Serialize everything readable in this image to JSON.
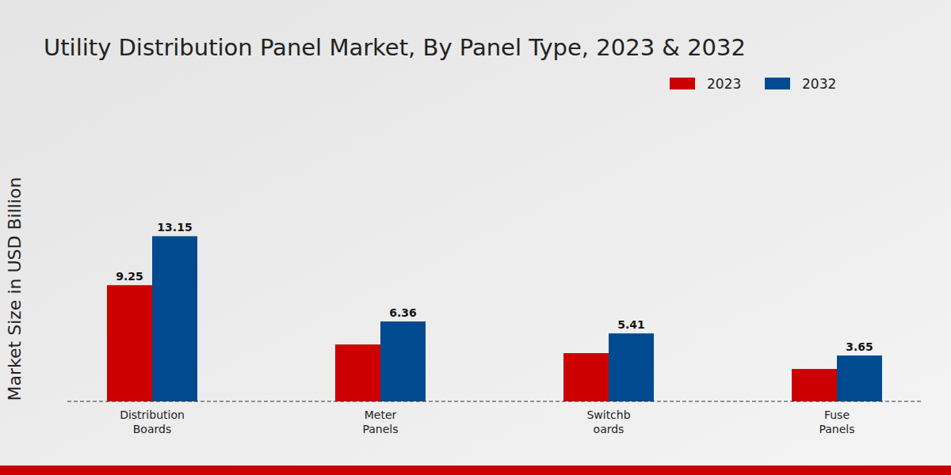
{
  "chart_data": {
    "type": "bar",
    "title": "Utility Distribution Panel Market, By Panel Type, 2023 & 2032",
    "y_label": "Market Size in USD Billion",
    "categories": [
      "Distribution\nBoards",
      "Meter\nPanels",
      "Switchb\noards",
      "Fuse\nPanels"
    ],
    "series": [
      {
        "name": "2023",
        "color": "#cc0000",
        "values": [
          9.25,
          4.53,
          3.84,
          2.58
        ],
        "value_labels": [
          "9.25",
          null,
          null,
          null
        ]
      },
      {
        "name": "2032",
        "color": "#004a8f",
        "values": [
          13.15,
          6.36,
          5.41,
          3.65
        ]
      }
    ],
    "ylim": [
      0,
      22.5
    ],
    "tick_labels": "x",
    "data_labels": true,
    "legend": "top-right",
    "grid": false
  }
}
